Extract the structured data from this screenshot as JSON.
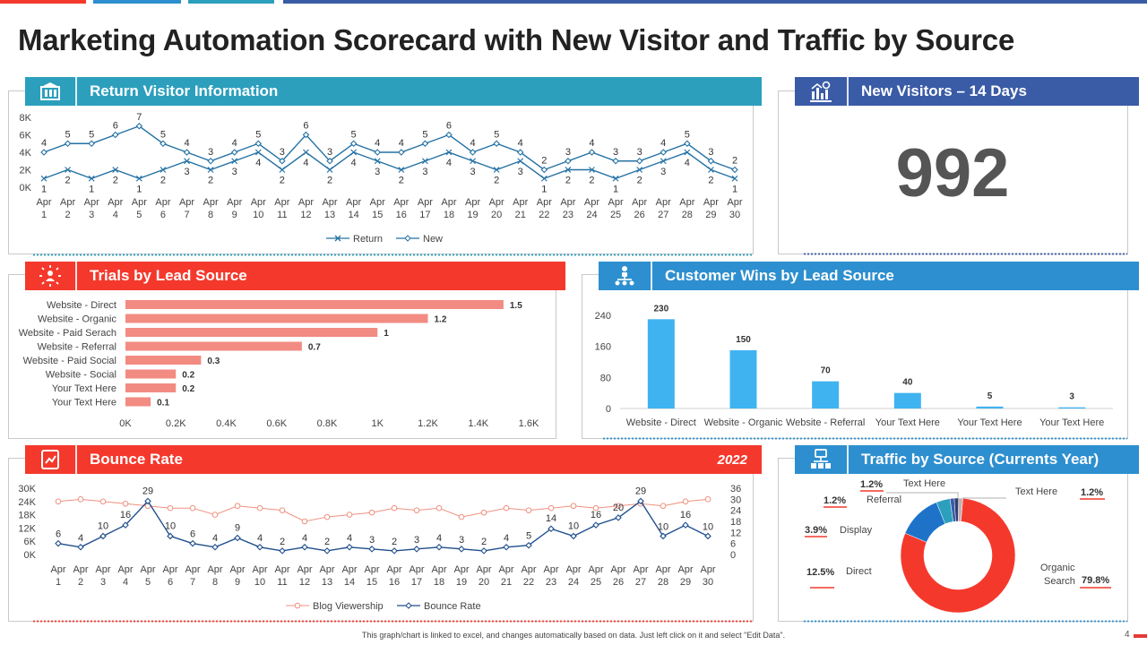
{
  "title": "Marketing Automation Scorecard with New Visitor and Traffic by Source",
  "colors": {
    "red": "#f4392c",
    "blue": "#3a5ba6",
    "teal": "#2c9fbd",
    "lightblue": "#2d8fcf",
    "bar": "#f28b82",
    "cyan": "#3fb3f0"
  },
  "panels": {
    "return_visitor": {
      "title": "Return Visitor Information"
    },
    "new_visitors": {
      "title": "New Visitors – 14 Days",
      "value": "992"
    },
    "trials": {
      "title": "Trials by Lead Source"
    },
    "customer_wins": {
      "title": "Customer Wins by Lead Source"
    },
    "bounce": {
      "title": "Bounce Rate",
      "year": "2022"
    },
    "traffic": {
      "title": "Traffic by Source (Currents Year)"
    }
  },
  "footer": "This graph/chart is linked to excel, and changes automatically based on data. Just left click on it and select \"Edit Data\".",
  "page_number": "4",
  "chart_data": [
    {
      "id": "return_visitor",
      "type": "line",
      "x_top": "Apr",
      "categories": [
        "1",
        "2",
        "3",
        "4",
        "5",
        "6",
        "7",
        "8",
        "9",
        "10",
        "11",
        "12",
        "13",
        "14",
        "15",
        "16",
        "17",
        "18",
        "19",
        "20",
        "21",
        "22",
        "23",
        "24",
        "25",
        "26",
        "27",
        "28",
        "29",
        "30"
      ],
      "ylim": [
        0,
        8
      ],
      "yticks": [
        "0K",
        "2K",
        "4K",
        "6K",
        "8K"
      ],
      "series": [
        {
          "name": "Return",
          "values": [
            1,
            2,
            1,
            2,
            1,
            2,
            3,
            2,
            3,
            4,
            2,
            4,
            2,
            4,
            3,
            2,
            3,
            4,
            3,
            2,
            3,
            1,
            2,
            2,
            1,
            2,
            3,
            4,
            2,
            1
          ]
        },
        {
          "name": "New",
          "values": [
            4,
            5,
            5,
            6,
            7,
            5,
            4,
            3,
            4,
            5,
            3,
            6,
            3,
            5,
            4,
            4,
            5,
            6,
            4,
            5,
            4,
            2,
            3,
            4,
            3,
            3,
            4,
            5,
            3,
            2
          ]
        }
      ]
    },
    {
      "id": "trials",
      "type": "bar",
      "orientation": "horizontal",
      "categories": [
        "Website - Direct",
        "Website - Organic",
        "Website - Paid Serach",
        "Website - Referral",
        "Website - Paid Social",
        "Website - Social",
        "Your Text Here",
        "Your Text Here"
      ],
      "values": [
        1.5,
        1.2,
        1,
        0.7,
        0.3,
        0.2,
        0.2,
        0.1
      ],
      "xlim": [
        0,
        1.6
      ],
      "xticks": [
        "0K",
        "0.2K",
        "0.4K",
        "0.6K",
        "0.8K",
        "1K",
        "1.2K",
        "1.4K",
        "1.6K"
      ]
    },
    {
      "id": "customer_wins",
      "type": "bar",
      "categories": [
        "Website - Direct",
        "Website - Organic",
        "Website - Referral",
        "Your Text Here",
        "Your Text Here",
        "Your Text Here"
      ],
      "values": [
        230,
        150,
        70,
        40,
        5,
        3
      ],
      "ylim": [
        0,
        240
      ],
      "yticks": [
        "0",
        "80",
        "160",
        "240"
      ]
    },
    {
      "id": "bounce",
      "type": "line",
      "x_top": "Apr",
      "categories": [
        "1",
        "2",
        "3",
        "4",
        "5",
        "6",
        "7",
        "8",
        "9",
        "10",
        "11",
        "12",
        "13",
        "14",
        "15",
        "16",
        "17",
        "18",
        "19",
        "20",
        "21",
        "22",
        "23",
        "24",
        "25",
        "26",
        "27",
        "28",
        "29",
        "30"
      ],
      "ylim_left": [
        0,
        30
      ],
      "yticks_left": [
        "0K",
        "6K",
        "12K",
        "18K",
        "24K",
        "30K"
      ],
      "ylim_right": [
        0,
        36
      ],
      "yticks_right": [
        "0",
        "6",
        "12",
        "18",
        "24",
        "30",
        "36"
      ],
      "series": [
        {
          "name": "Blog Viewership",
          "axis": "left",
          "values": [
            24,
            25,
            24,
            23,
            22,
            21,
            21,
            18,
            22,
            21,
            20,
            15,
            17,
            18,
            19,
            21,
            20,
            21,
            17,
            19,
            21,
            20,
            21,
            22,
            21,
            22,
            23,
            22,
            24,
            25
          ]
        },
        {
          "name": "Bounce Rate",
          "axis": "right",
          "values": [
            6,
            4,
            10,
            16,
            29,
            10,
            6,
            4,
            9,
            4,
            2,
            4,
            2,
            4,
            3,
            2,
            3,
            4,
            3,
            2,
            4,
            5,
            14,
            10,
            16,
            20,
            29,
            10,
            16,
            10
          ]
        }
      ]
    },
    {
      "id": "traffic",
      "type": "pie",
      "labels": [
        "Organic Search",
        "Direct",
        "Display",
        "Referral",
        "Text Here",
        "Text Here"
      ],
      "values": [
        79.8,
        12.5,
        3.9,
        1.2,
        1.2,
        1.2
      ],
      "value_labels": [
        "79.8%",
        "12.5%",
        "3.9%",
        "1.2%",
        "1.2%",
        "1.2%"
      ],
      "slice_colors": [
        "#f4392c",
        "#1e73c9",
        "#2c9fbd",
        "#3a5ba6",
        "#2e3f77",
        "#c9b0ad"
      ]
    }
  ]
}
